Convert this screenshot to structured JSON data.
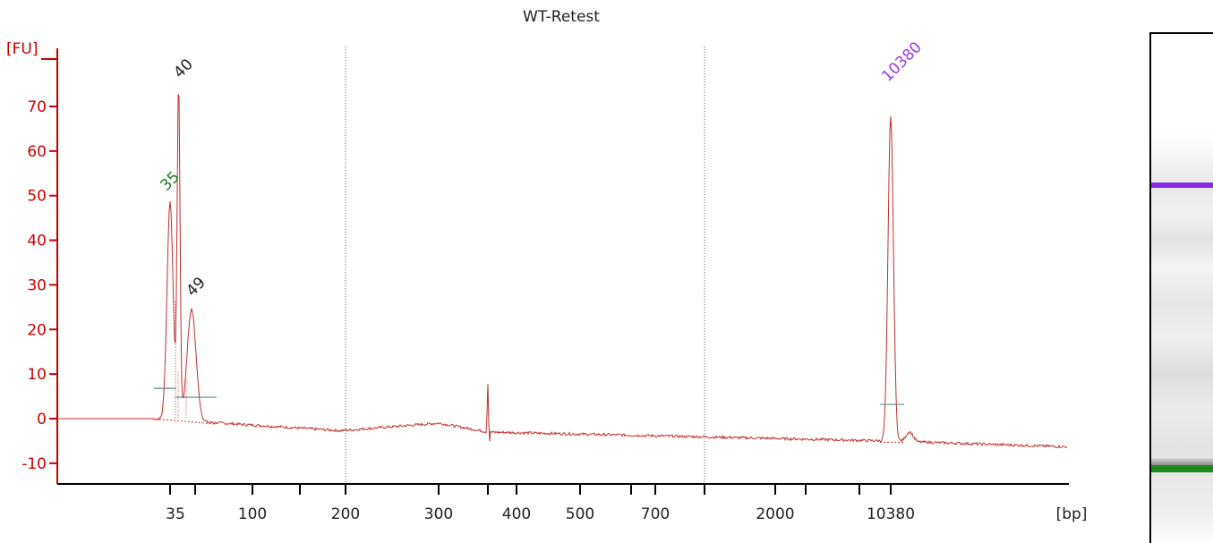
{
  "chart_data": {
    "type": "line",
    "title": "WT-Retest",
    "ylabel": "[FU]",
    "xlabel": "[bp]",
    "ylim": [
      -15,
      80
    ],
    "y_ticks": [
      -10,
      0,
      10,
      20,
      30,
      40,
      50,
      60,
      70
    ],
    "x_axis_scale": "nonlinear (electropherogram size ladder)",
    "x_tick_labels": [
      "35",
      "100",
      "200",
      "300",
      "400",
      "500",
      "700",
      "2000",
      "10380"
    ],
    "series": [
      {
        "color": "#c0302c",
        "x_bp": [
          35,
          40,
          49,
          100,
          200,
          300,
          400,
          700,
          2000,
          10380
        ],
        "peaks": [
          {
            "label": "35",
            "size_bp": 35,
            "height_fu": 49,
            "label_color": "#1a7a1a"
          },
          {
            "label": "40",
            "size_bp": 40,
            "height_fu": 75,
            "label_color": "#222222"
          },
          {
            "label": "49",
            "size_bp": 49,
            "height_fu": 25,
            "label_color": "#222222"
          },
          {
            "label": "10380",
            "size_bp": 10380,
            "height_fu": 73,
            "label_color": "#9b3be0"
          }
        ]
      }
    ],
    "grid": false,
    "legend": "none"
  },
  "gel": {
    "bands": [
      {
        "color": "#8a2be2",
        "marker": "upper"
      },
      {
        "color": "#1a8a1a",
        "marker": "lower"
      }
    ]
  },
  "colors": {
    "axis": "#cc0000",
    "trace": "#c0302c",
    "baseline": "#5a8a8a",
    "dotted_lines": "#555577"
  }
}
